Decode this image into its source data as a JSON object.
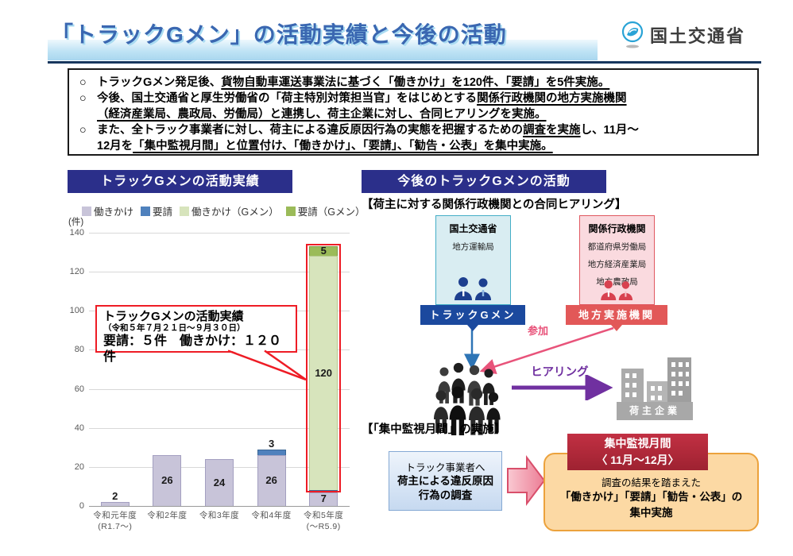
{
  "header": {
    "title": "「トラックGメン」の活動実績と今後の活動",
    "logo_text": "国土交通省"
  },
  "summary": {
    "b1s1": "トラックGメン発足後、",
    "b1s2": "貨物自動車運送事業法に基づく「働きかけ」を120件、「要請」を5件実施。",
    "b2s1": "今後、国土交通省と厚生労働省の「荷主特別対策担当官」をはじめとする",
    "b2s2a": "関係行政機関の地方実施機関",
    "b2s2b": "（経済産業局、農政局、労働局）と連携し、荷主企業に対し、合同ヒアリングを実施。",
    "b3s1": "また、全トラック事業者に対し、荷主による違反原因行為の実態を把握するための",
    "b3s2": "調査を実施",
    "b3s3": "し、11月～",
    "b3s4": "12月を",
    "b3s5": "「集中監視月間」と位置付け、「働きかけ」、「要請」、「勧告・公表」を集中実施。"
  },
  "left_panel": {
    "header": "トラックGメンの活動実績",
    "unit": "(件)",
    "callout": {
      "line1": "トラックGメンの活動実績",
      "line2": "（令和５年７月２１日～９月３０日）",
      "line3": "要請：５件　働きかけ：１２０件"
    }
  },
  "chart_data": {
    "type": "bar",
    "stacked": true,
    "title": "トラックGメンの活動実績",
    "ylabel": "(件)",
    "ylim": [
      0,
      140
    ],
    "ytick_step": 20,
    "grid": true,
    "legend_position": "top",
    "categories": [
      "令和元年度\n(R1.7～)",
      "令和2年度",
      "令和3年度",
      "令和4年度",
      "令和5年度\n(～R5.9)"
    ],
    "series": [
      {
        "name": "働きかけ",
        "color": "#c8c4d9",
        "border": "#a39fc0",
        "values": [
          2,
          26,
          24,
          26,
          7
        ]
      },
      {
        "name": "要請",
        "color": "#4f81bd",
        "border": "#3a6694",
        "values": [
          0,
          0,
          0,
          3,
          1
        ]
      },
      {
        "name": "働きかけ（Gメン）",
        "color": "#d7e4bc",
        "border": "#b5c98e",
        "values": [
          0,
          0,
          0,
          0,
          120
        ]
      },
      {
        "name": "要請（Gメン）",
        "color": "#9bbb59",
        "border": "#7e9a47",
        "values": [
          0,
          0,
          0,
          0,
          5
        ]
      }
    ],
    "highlight": {
      "category_index": 4,
      "from_series": 1,
      "color": "#ee1c25"
    }
  },
  "right_panel": {
    "header": "今後のトラックGメンの活動",
    "caption_hearing": "【荷主に対する関係行政機関との合同ヒアリング】",
    "mlit_box": {
      "title": "国土交通省",
      "item1": "地方運輸局",
      "label": "トラックGメン"
    },
    "kankei_box": {
      "title": "関係行政機関",
      "item1": "都道府県労働局",
      "item2": "地方経済産業局",
      "item3": "地方農政局",
      "label": "地方実施機関"
    },
    "sanka": "参加",
    "hearing": "ヒアリング",
    "ninushi": "荷主企業",
    "caption_monitor": "【「集中監視月間」の実施】",
    "survey_box": {
      "line1": "トラック事業者へ",
      "line2": "荷主による違反原因",
      "line3": "行為の調査"
    },
    "monitor_box": {
      "header1": "集中監視月間",
      "header2": "〈 11月～12月〉",
      "body1": "調査の結果を踏まえた",
      "body2": "「働きかけ」「要請」「勧告・公表」の",
      "body3": "集中実施"
    }
  },
  "colors": {
    "title_blue": "#3a67b1",
    "section_header_bg": "#2b2f8a",
    "highlight_red": "#ee1c25",
    "gmen_label_bg": "#1b499e",
    "chiho_label_bg": "#e25858",
    "sanka_pink": "#e8537a",
    "hearing_purple": "#7030a0",
    "monitor_red": "#b12936",
    "monitor_orange_bg": "#fcd9a4",
    "monitor_orange_border": "#eca23c"
  }
}
